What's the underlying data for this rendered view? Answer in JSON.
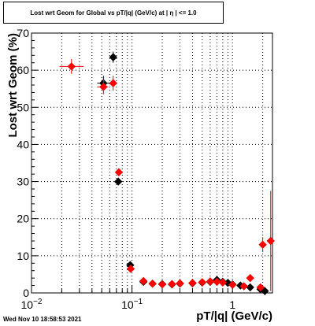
{
  "chart_data": {
    "type": "scatter",
    "title": "Lost wrt Geom for Global vs pT/|q| (GeV/c) at |   η  | <= 1.0",
    "xlabel": "pT/|q| (GeV/c)",
    "ylabel": "Lost wrt Geom (%)",
    "xscale": "log",
    "xlim": [
      0.01,
      2.5
    ],
    "ylim": [
      0,
      70
    ],
    "x_ticks": [
      {
        "label": "10",
        "exp": "−2",
        "value": 0.01
      },
      {
        "label": "10",
        "exp": "−1",
        "value": 0.1
      },
      {
        "label": "1",
        "exp": "",
        "value": 1
      }
    ],
    "y_ticks": [
      "0",
      "10",
      "20",
      "30",
      "40",
      "50",
      "60",
      "70"
    ],
    "y_tick_values": [
      0,
      10,
      20,
      30,
      40,
      50,
      60,
      70
    ],
    "grid": true,
    "series": [
      {
        "color": "#000000",
        "marker": "diamond",
        "points": [
          {
            "x": 0.065,
            "y": 63.5,
            "xerr": [
              0.063,
              0.067
            ],
            "yerr": 1.5
          },
          {
            "x": 0.052,
            "y": 56.5,
            "xerr": [
              0.045,
              0.06
            ],
            "yerr": 2.0
          },
          {
            "x": 0.073,
            "y": 30.0,
            "xerr": [
              0.07,
              0.076
            ],
            "yerr": 1.0
          },
          {
            "x": 0.096,
            "y": 7.5,
            "xerr": [
              0.09,
              0.102
            ],
            "yerr": 1.0
          },
          {
            "x": 0.13,
            "y": 3.0,
            "yerr": 0.5
          },
          {
            "x": 0.16,
            "y": 2.5
          },
          {
            "x": 0.2,
            "y": 2.4
          },
          {
            "x": 0.25,
            "y": 2.3
          },
          {
            "x": 0.3,
            "y": 2.5
          },
          {
            "x": 0.4,
            "y": 2.6
          },
          {
            "x": 0.5,
            "y": 2.8
          },
          {
            "x": 0.6,
            "y": 3.0
          },
          {
            "x": 0.7,
            "y": 3.5
          },
          {
            "x": 0.8,
            "y": 3.0
          },
          {
            "x": 0.9,
            "y": 2.7
          },
          {
            "x": 1.0,
            "y": 2.3
          },
          {
            "x": 1.2,
            "y": 2.0
          },
          {
            "x": 1.5,
            "y": 1.5
          },
          {
            "x": 1.9,
            "y": 1.0
          },
          {
            "x": 2.1,
            "y": 0.5
          }
        ]
      },
      {
        "color": "#ff0000",
        "marker": "diamond",
        "points": [
          {
            "x": 0.025,
            "y": 61.0,
            "xerr": [
              0.019,
              0.033
            ],
            "yerr": 2.0
          },
          {
            "x": 0.052,
            "y": 55.5,
            "xerr": [
              0.045,
              0.058
            ],
            "yerr": 2.0
          },
          {
            "x": 0.065,
            "y": 56.5,
            "xerr": [
              0.061,
              0.069
            ],
            "yerr": 2.0
          },
          {
            "x": 0.074,
            "y": 32.5,
            "xerr": [
              0.071,
              0.077
            ],
            "yerr": 1.0
          },
          {
            "x": 0.097,
            "y": 6.5,
            "xerr": [
              0.092,
              0.103
            ],
            "yerr": 1.0
          },
          {
            "x": 0.13,
            "y": 3.2,
            "yerr": 0.5
          },
          {
            "x": 0.16,
            "y": 2.5
          },
          {
            "x": 0.2,
            "y": 2.3
          },
          {
            "x": 0.25,
            "y": 2.4
          },
          {
            "x": 0.3,
            "y": 2.6
          },
          {
            "x": 0.4,
            "y": 2.7
          },
          {
            "x": 0.5,
            "y": 2.9
          },
          {
            "x": 0.6,
            "y": 3.1
          },
          {
            "x": 0.7,
            "y": 3.0
          },
          {
            "x": 0.8,
            "y": 2.8
          },
          {
            "x": 1.0,
            "y": 2.2
          },
          {
            "x": 1.3,
            "y": 1.8
          },
          {
            "x": 1.5,
            "y": 4.0,
            "yerr": 1.0
          },
          {
            "x": 1.9,
            "y": 1.5
          },
          {
            "x": 2.0,
            "y": 13.0,
            "yerr": 2.0
          },
          {
            "x": 2.4,
            "y": 14.0,
            "yerr": 13.5
          }
        ]
      }
    ]
  },
  "footer": {
    "timestamp": "Wed Nov 10 18:58:53 2021"
  }
}
